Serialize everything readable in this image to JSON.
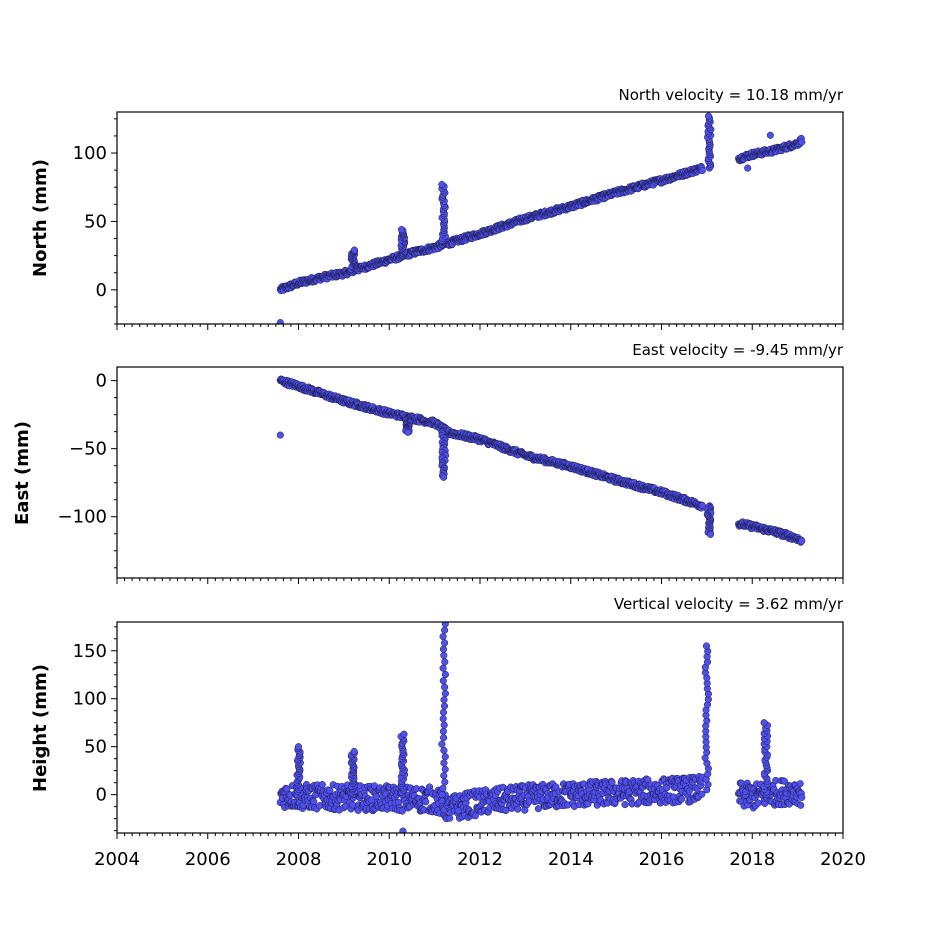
{
  "chart_data": [
    {
      "type": "scatter",
      "title": "North velocity = 10.18 mm/yr",
      "ylabel": "North (mm)",
      "xlim": [
        2004,
        2020
      ],
      "ylim": [
        -25,
        130
      ],
      "yticks": [
        0,
        50,
        100
      ],
      "series": [
        {
          "color": "#4f4ff2",
          "segments": [
            {
              "x": [
                2007.6,
                2008.0,
                2008.5,
                2009.0,
                2009.5,
                2010.0,
                2010.5,
                2011.0,
                2011.3,
                2012.0,
                2013.0,
                2014.0,
                2015.0,
                2016.0,
                2016.9
              ],
              "y": [
                0,
                5,
                9,
                12,
                17,
                22,
                27,
                31,
                34,
                41,
                52,
                61,
                71,
                80,
                89
              ]
            },
            {
              "x": [
                2017.7,
                2018.0,
                2018.5,
                2019.0,
                2019.1
              ],
              "y": [
                96,
                99,
                102,
                107,
                110
              ]
            }
          ],
          "spikes": [
            {
              "x": 2009.2,
              "peak": 29,
              "base": 15
            },
            {
              "x": 2010.3,
              "peak": 44,
              "base": 24
            },
            {
              "x": 2011.2,
              "peak": 77,
              "base": 36
            },
            {
              "x": 2017.05,
              "peak": 127,
              "base": 89
            }
          ],
          "outliers": [
            {
              "x": 2007.6,
              "y": -24
            },
            {
              "x": 2017.9,
              "y": 89
            },
            {
              "x": 2018.4,
              "y": 113
            }
          ]
        }
      ]
    },
    {
      "type": "scatter",
      "title": "East velocity = -9.45 mm/yr",
      "ylabel": "East (mm)",
      "xlim": [
        2004,
        2020
      ],
      "ylim": [
        -145,
        10
      ],
      "yticks": [
        0,
        -50,
        -100
      ],
      "series": [
        {
          "color": "#4f4ff2",
          "segments": [
            {
              "x": [
                2007.6,
                2008.0,
                2009.0,
                2010.0,
                2011.0,
                2011.3,
                2012.0,
                2013.0,
                2014.0,
                2015.0,
                2016.0,
                2016.9
              ],
              "y": [
                0,
                -4,
                -15,
                -24,
                -31,
                -38,
                -43,
                -55,
                -63,
                -73,
                -82,
                -92
              ]
            },
            {
              "x": [
                2017.7,
                2018.0,
                2018.5,
                2019.0,
                2019.1
              ],
              "y": [
                -105,
                -107,
                -111,
                -116,
                -119
              ]
            }
          ],
          "spikes": [
            {
              "x": 2010.4,
              "peak": -38,
              "base": -27
            },
            {
              "x": 2011.2,
              "peak": -71,
              "base": -38
            },
            {
              "x": 2017.05,
              "peak": -113,
              "base": -92
            }
          ],
          "outliers": [
            {
              "x": 2007.6,
              "y": -40
            }
          ]
        }
      ]
    },
    {
      "type": "scatter",
      "title": "Vertical velocity = 3.62 mm/yr",
      "ylabel": "Height (mm)",
      "xlabel": "",
      "xlim": [
        2004,
        2020
      ],
      "xticks": [
        2004,
        2006,
        2008,
        2010,
        2012,
        2014,
        2016,
        2018,
        2020
      ],
      "ylim": [
        -40,
        180
      ],
      "yticks": [
        0,
        50,
        100,
        150
      ],
      "series": [
        {
          "color": "#4f4ff2",
          "segments": [
            {
              "x": [
                2007.6,
                2008.0,
                2009.0,
                2010.0,
                2011.0,
                2011.3,
                2012.0,
                2013.0,
                2014.0,
                2015.0,
                2016.0,
                2016.9
              ],
              "y": [
                0,
                -2,
                -3,
                -4,
                -5,
                -15,
                -8,
                -3,
                0,
                2,
                4,
                6
              ]
            },
            {
              "x": [
                2017.7,
                2018.0,
                2018.5,
                2019.0,
                2019.1
              ],
              "y": [
                0,
                -2,
                2,
                4,
                0
              ]
            }
          ],
          "spikes": [
            {
              "x": 2008.0,
              "peak": 50,
              "base": 0
            },
            {
              "x": 2009.2,
              "peak": 45,
              "base": 0
            },
            {
              "x": 2010.3,
              "peak": 63,
              "base": 0
            },
            {
              "x": 2011.2,
              "peak": 178,
              "base": 0
            },
            {
              "x": 2017.0,
              "peak": 155,
              "base": 5
            },
            {
              "x": 2018.3,
              "peak": 75,
              "base": 0
            }
          ],
          "outliers": [
            {
              "x": 2010.3,
              "y": -38
            }
          ]
        }
      ]
    }
  ]
}
